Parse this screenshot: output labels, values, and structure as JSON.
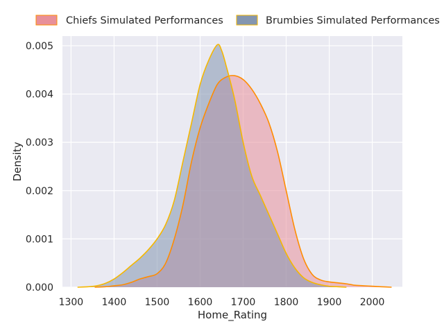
{
  "chart_data": {
    "type": "area",
    "title": "",
    "xlabel": "Home_Rating",
    "ylabel": "Density",
    "xlim": [
      1280,
      2070
    ],
    "ylim": [
      0,
      0.0052
    ],
    "x_ticks": [
      1300,
      1400,
      1500,
      1600,
      1700,
      1800,
      1900,
      2000
    ],
    "y_ticks": [
      0.0,
      0.001,
      0.002,
      0.003,
      0.004,
      0.005
    ],
    "x_tick_labels": [
      "1300",
      "1400",
      "1500",
      "1600",
      "1700",
      "1800",
      "1900",
      "2000"
    ],
    "y_tick_labels": [
      "0.000",
      "0.001",
      "0.002",
      "0.003",
      "0.004",
      "0.005"
    ],
    "grid": true,
    "legend_position": "top-center",
    "plot_background": "#eaeaf2",
    "series": [
      {
        "name": "Chiefs Simulated Performances",
        "fill_color": "#e8909a",
        "line_color": "#ff8c00",
        "points": [
          [
            1355,
            0.0
          ],
          [
            1380,
            1e-05
          ],
          [
            1400,
            3e-05
          ],
          [
            1420,
            5e-05
          ],
          [
            1440,
            0.0001
          ],
          [
            1460,
            0.00017
          ],
          [
            1480,
            0.00022
          ],
          [
            1500,
            0.00028
          ],
          [
            1520,
            0.0005
          ],
          [
            1540,
            0.001
          ],
          [
            1560,
            0.0017
          ],
          [
            1580,
            0.0026
          ],
          [
            1600,
            0.0033
          ],
          [
            1620,
            0.0038
          ],
          [
            1640,
            0.0042
          ],
          [
            1660,
            0.00435
          ],
          [
            1680,
            0.00438
          ],
          [
            1700,
            0.0043
          ],
          [
            1720,
            0.0041
          ],
          [
            1740,
            0.0038
          ],
          [
            1760,
            0.0034
          ],
          [
            1780,
            0.0028
          ],
          [
            1800,
            0.002
          ],
          [
            1820,
            0.0012
          ],
          [
            1840,
            0.0006
          ],
          [
            1860,
            0.00027
          ],
          [
            1880,
            0.00015
          ],
          [
            1900,
            0.00011
          ],
          [
            1920,
            9e-05
          ],
          [
            1940,
            7e-05
          ],
          [
            1960,
            4e-05
          ],
          [
            1980,
            3e-05
          ],
          [
            2000,
            2e-05
          ],
          [
            2020,
            1e-05
          ],
          [
            2045,
            0.0
          ]
        ]
      },
      {
        "name": "Brumbies Simulated Performances",
        "fill_color": "#8496b0",
        "line_color": "#f5b700",
        "points": [
          [
            1315,
            0.0
          ],
          [
            1340,
            1e-05
          ],
          [
            1360,
            3e-05
          ],
          [
            1380,
            8e-05
          ],
          [
            1400,
            0.00017
          ],
          [
            1420,
            0.0003
          ],
          [
            1440,
            0.00045
          ],
          [
            1460,
            0.0006
          ],
          [
            1480,
            0.00078
          ],
          [
            1500,
            0.001
          ],
          [
            1520,
            0.0013
          ],
          [
            1540,
            0.0018
          ],
          [
            1560,
            0.0026
          ],
          [
            1580,
            0.0034
          ],
          [
            1600,
            0.0042
          ],
          [
            1620,
            0.0047
          ],
          [
            1640,
            0.00502
          ],
          [
            1650,
            0.0049
          ],
          [
            1660,
            0.0046
          ],
          [
            1680,
            0.0039
          ],
          [
            1700,
            0.003
          ],
          [
            1720,
            0.0023
          ],
          [
            1740,
            0.0019
          ],
          [
            1760,
            0.0015
          ],
          [
            1780,
            0.0011
          ],
          [
            1800,
            0.0007
          ],
          [
            1820,
            0.0004
          ],
          [
            1840,
            0.0002
          ],
          [
            1860,
            0.0001
          ],
          [
            1880,
            5e-05
          ],
          [
            1900,
            2e-05
          ],
          [
            1920,
            1e-05
          ],
          [
            1940,
            0.0
          ]
        ]
      }
    ]
  }
}
